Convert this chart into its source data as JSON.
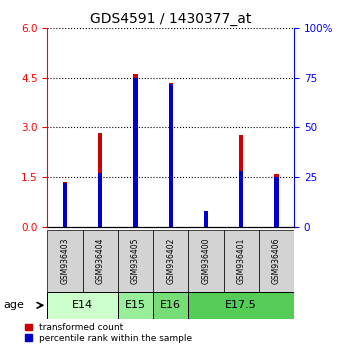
{
  "title": "GDS4591 / 1430377_at",
  "samples": [
    "GSM936403",
    "GSM936404",
    "GSM936405",
    "GSM936402",
    "GSM936400",
    "GSM936401",
    "GSM936406"
  ],
  "red_values": [
    1.35,
    2.82,
    4.62,
    4.35,
    0.27,
    2.78,
    1.58
  ],
  "blue_pct": [
    22,
    27,
    75,
    72,
    8,
    28,
    25
  ],
  "ylim_left": [
    0,
    6
  ],
  "ylim_right": [
    0,
    100
  ],
  "yticks_left": [
    0,
    1.5,
    3,
    4.5,
    6
  ],
  "yticks_right": [
    0,
    25,
    50,
    75,
    100
  ],
  "age_groups": [
    {
      "label": "E14",
      "spans": [
        0,
        1
      ],
      "color": "#ccffcc"
    },
    {
      "label": "E15",
      "spans": [
        2
      ],
      "color": "#99ee99"
    },
    {
      "label": "E16",
      "spans": [
        3
      ],
      "color": "#77dd77"
    },
    {
      "label": "E17.5",
      "spans": [
        4,
        5,
        6
      ],
      "color": "#55cc55"
    }
  ],
  "red_color": "#cc0000",
  "blue_color": "#0000cc",
  "bar_width": 0.12,
  "blue_bar_width": 0.12,
  "sample_bg": "#d3d3d3",
  "legend_red": "transformed count",
  "legend_blue": "percentile rank within the sample",
  "title_fontsize": 10,
  "tick_fontsize": 7.5,
  "sample_fontsize": 5.5,
  "age_fontsize": 8
}
